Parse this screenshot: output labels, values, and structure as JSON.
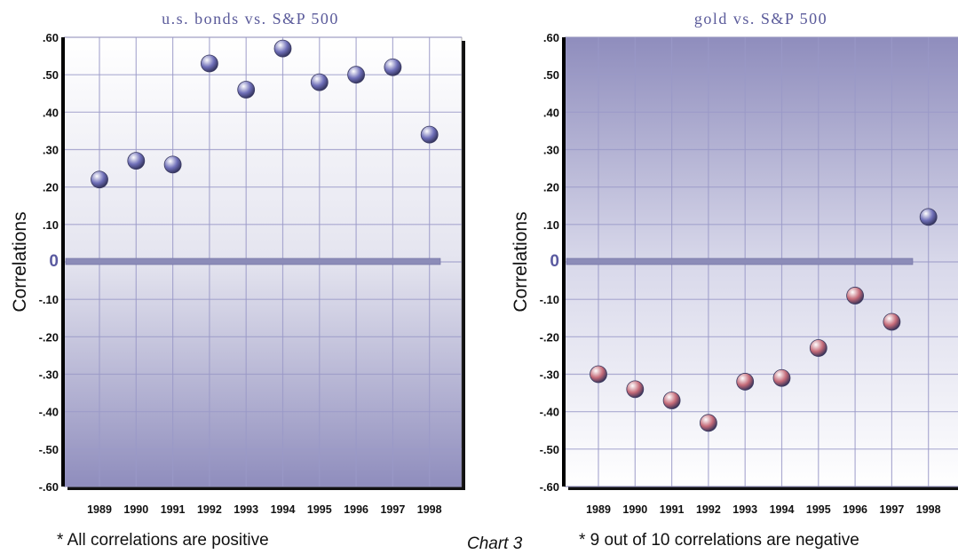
{
  "chart_data": [
    {
      "type": "scatter",
      "title": "u.s. bonds vs. S&P 500",
      "xlabel": "",
      "ylabel": "Correlations",
      "x": [
        "1989",
        "1990",
        "1991",
        "1992",
        "1993",
        "1994",
        "1995",
        "1996",
        "1997",
        "1998"
      ],
      "y": [
        0.22,
        0.27,
        0.26,
        0.53,
        0.46,
        0.57,
        0.48,
        0.5,
        0.52,
        0.34
      ],
      "ylim": [
        -0.6,
        0.6
      ],
      "yticks": [
        ".60",
        ".50",
        ".40",
        ".30",
        ".20",
        ".10",
        "0",
        "-.10",
        "-.20",
        "-.30",
        "-.40",
        "-.50",
        "-.60"
      ],
      "grid": true,
      "background_gradient": "light-top-dark-bottom",
      "marker_color": "#6f6fb8",
      "zero_line_color": "#8c8cb8",
      "note": "* All correlations are positive"
    },
    {
      "type": "scatter",
      "title": "gold vs. S&P 500",
      "xlabel": "",
      "ylabel": "Correlations",
      "x": [
        "1989",
        "1990",
        "1991",
        "1992",
        "1993",
        "1994",
        "1995",
        "1996",
        "1997",
        "1998"
      ],
      "y": [
        -0.3,
        -0.34,
        -0.37,
        -0.43,
        -0.32,
        -0.31,
        -0.23,
        -0.09,
        -0.16,
        0.12
      ],
      "ylim": [
        -0.6,
        0.6
      ],
      "yticks": [
        ".60",
        ".50",
        ".40",
        ".30",
        ".20",
        ".10",
        "0",
        "-.10",
        "-.20",
        "-.30",
        "-.40",
        "-.50",
        "-.60"
      ],
      "grid": true,
      "background_gradient": "dark-top-light-bottom",
      "marker_color": "#c46a78",
      "highlight_marker_color": "#6f6fb8",
      "zero_line_color": "#8c8cb8",
      "note": "* 9 out of 10 correlations are negative"
    }
  ],
  "figure_label": "Chart 3"
}
